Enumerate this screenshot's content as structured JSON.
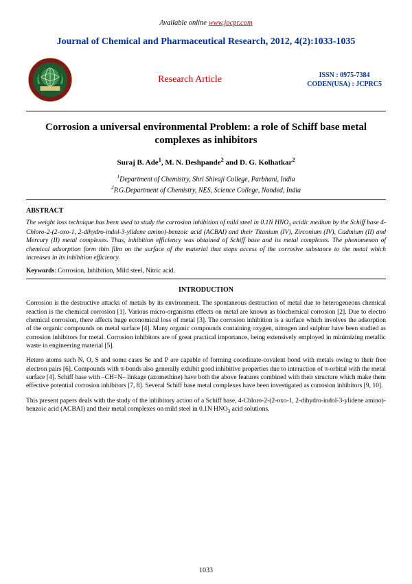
{
  "header": {
    "available_prefix": "Available online ",
    "available_link": "www.jocpr.com",
    "journal_title": "Journal of Chemical and Pharmaceutical Research, 2012, 4(2):1033-1035",
    "research_article": "Research Article",
    "issn_line": "ISSN : 0975-7384",
    "coden_line": "CODEN(USA) : JCPRC5",
    "colors": {
      "journal_title": "#0033aa",
      "research_article": "#cc0000",
      "issn": "#0033aa",
      "link": "#cc0000"
    },
    "logo": {
      "outer_ring": "#7a1a1a",
      "inner_bg": "#1e5a2e",
      "globe": "#3a8f4a",
      "scroll": "#d9c47a",
      "leaf": "#4da05a"
    }
  },
  "paper": {
    "title": "Corrosion a universal environmental Problem: a role of Schiff base metal complexes as inhibitors",
    "authors_html": "Suraj B. Ade<sup>1</sup>, M. N. Deshpande<sup>2</sup> and D. G. Kolhatkar<sup>2</sup>",
    "affil1_html": "<sup>1</sup>Department of Chemistry, Shri Shivaji College, Parbhani, India",
    "affil2_html": "<sup>2</sup>P.G.Department of Chemistry, NES, Science College, Nanded, India"
  },
  "abstract": {
    "heading": "ABSTRACT",
    "text_html": "The weight loss technique has been used to study the corrosion inhibition of mild steel in 0.1N HNO<sub>3</sub> acidic medium by the Schiff base 4-Chloro-2-(2-oxo-1, 2-dihydro-indol-3-ylidene amino)-benzoic acid (ACBAI) and their Titanium (IV), Zirconium (IV), Cadmium (II) and Mercury (II) metal complexes. Thus, inhibition efficiency was obtained of Schiff base and its metal complexes. The phenomenon of chemical adsorption form thin film on the surface of the material that stops access of the corrosive substance to the metal which increases in its inhibition efficiency.",
    "keywords_label": "Keywords",
    "keywords_text": ": Corrosion, Inhibition, Mild steel, Nitric acid."
  },
  "introduction": {
    "heading": "INTRODUCTION",
    "p1": "Corrosion is the destructive attacks of metals by its environment. The spontaneous destruction of metal due to heterogeneous chemical reaction is the chemical corrosion [1]. Various micro-organisms effects on metal are known as biochemical corrosion [2]. Due to electro chemical corrosion, there affects huge economical loss of metal [3]. The corrosion inhibition is a surface which involves the adsorption of the organic compounds on metal surface [4]. Many organic compounds containing oxygen, nitrogen and sulphur have been studied as corrosion inhibitors for metal. Corrosion inhibitors are of great practical importance, being extensively employed in minimizing metallic waste in engineering material [5].",
    "p2": "Hetero atoms such N, O, S and some cases Se and P are capable of forming coordinate-covalent bond with metals owing to their free electron pairs [6]. Compounds with π-bonds also generally exhibit good inhibitive properties due to interaction of π-orbital with the metal surface [4]. Schiff base with –CH=N– linkage (azomethine) have both the above features combined with their structure which make them effective potential corrosion inhibitors [7, 8]. Several Schiff base metal complexes have been investigated as corrosion inhibitors [9, 10].",
    "p3_html": "This present papers deals with the study of the inhibitory action of a Schiff base, 4-Chloro-2-(2-oxo-1, 2-dihydro-indol-3-ylidene amino)-benzoic acid (ACBAI) and their metal complexes on mild steel in 0.1N HNO<sub>3</sub> acid solutions."
  },
  "page_number": "1033"
}
